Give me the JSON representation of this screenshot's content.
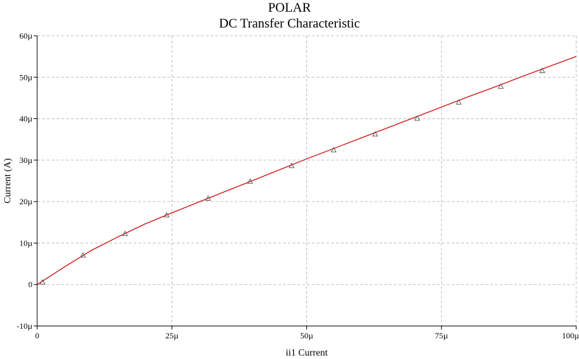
{
  "chart_data": {
    "type": "line",
    "title": "POLAR",
    "subtitle": "DC Transfer Characteristic",
    "xlabel": "ii1 Current",
    "ylabel": "Current (A)",
    "xlim": [
      0,
      100
    ],
    "ylim": [
      -10,
      60
    ],
    "x_ticks": [
      0,
      25,
      50,
      75,
      100
    ],
    "x_tick_labels": [
      "0",
      "25µ",
      "50µ",
      "75µ",
      "100µ"
    ],
    "y_ticks": [
      -10,
      0,
      10,
      20,
      30,
      40,
      50,
      60
    ],
    "y_tick_labels": [
      "-10µ",
      "0",
      "10µ",
      "20µ",
      "30µ",
      "40µ",
      "50µ",
      "60µ"
    ],
    "grid": true,
    "line_color": "#cc0000",
    "marker_color": "#555555",
    "marker": "triangle",
    "series": [
      {
        "x": [
          0,
          5,
          10,
          15,
          20,
          25,
          30,
          35,
          40,
          45,
          50,
          55,
          60,
          65,
          70,
          75,
          80,
          85,
          90,
          95,
          100
        ],
        "values": [
          0.0,
          4.2,
          8.2,
          11.5,
          14.6,
          17.3,
          19.9,
          22.5,
          25.1,
          27.7,
          30.3,
          32.8,
          35.3,
          37.8,
          40.3,
          42.8,
          45.3,
          47.7,
          50.2,
          52.6,
          55.0
        ]
      }
    ],
    "markers": {
      "x": [
        1,
        8.5,
        16.3,
        24,
        31.7,
        39.5,
        47.2,
        55,
        62.7,
        70.5,
        78.2,
        86,
        93.7
      ],
      "values": [
        0.5,
        7.0,
        12.2,
        16.7,
        20.7,
        24.8,
        28.6,
        32.4,
        36.2,
        40.0,
        43.9,
        47.7,
        51.5
      ]
    }
  }
}
